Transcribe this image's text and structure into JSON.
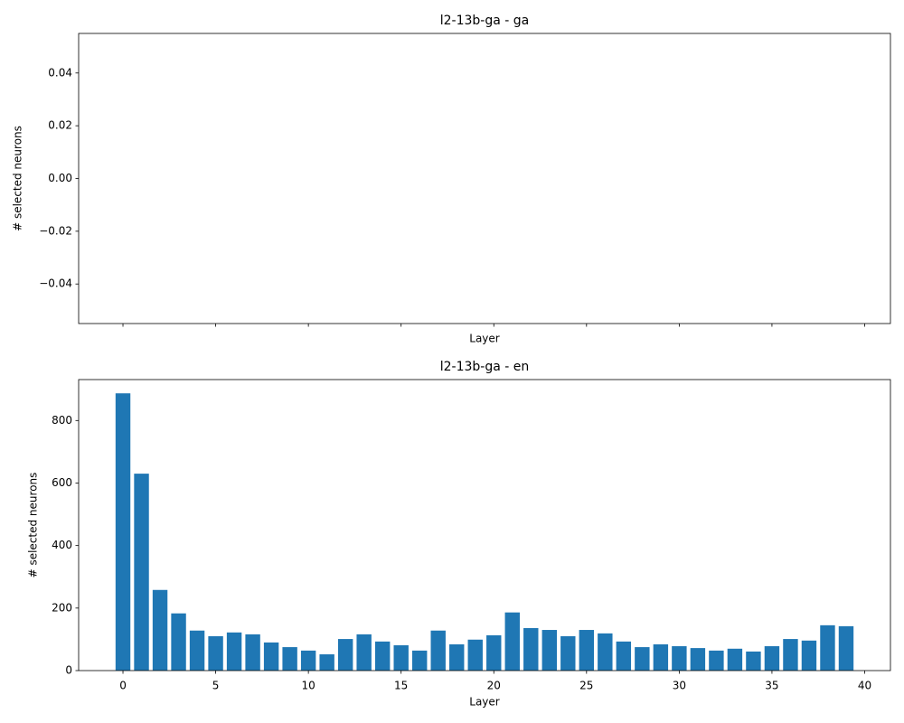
{
  "chart_data": [
    {
      "type": "bar",
      "title": "l2-13b-ga - ga",
      "xlabel": "Layer",
      "ylabel": "# selected neurons",
      "x": [],
      "values": [],
      "color": "#1f77b4",
      "xlim": [
        -2.39,
        41.39
      ],
      "xticks": [
        0,
        5,
        10,
        15,
        20,
        25,
        30,
        35,
        40
      ],
      "show_xtick_labels": false,
      "ylim": [
        -0.055,
        0.055
      ],
      "yticks": [
        {
          "value": -0.04,
          "label": "−0.04"
        },
        {
          "value": -0.02,
          "label": "−0.02"
        },
        {
          "value": 0,
          "label": "0.00"
        },
        0.02,
        0.04
      ]
    },
    {
      "type": "bar",
      "title": "l2-13b-ga - en",
      "xlabel": "Layer",
      "ylabel": "# selected neurons",
      "x": [
        0,
        1,
        2,
        3,
        4,
        5,
        6,
        7,
        8,
        9,
        10,
        11,
        12,
        13,
        14,
        15,
        16,
        17,
        18,
        19,
        20,
        21,
        22,
        23,
        24,
        25,
        26,
        27,
        28,
        29,
        30,
        31,
        32,
        33,
        34,
        35,
        36,
        37,
        38,
        39
      ],
      "values": [
        887,
        630,
        258,
        183,
        128,
        110,
        122,
        116,
        90,
        75,
        64,
        52,
        101,
        116,
        93,
        81,
        64,
        128,
        84,
        99,
        113,
        186,
        136,
        130,
        110,
        130,
        119,
        93,
        75,
        84,
        78,
        72,
        64,
        70,
        61,
        78,
        101,
        96,
        145,
        142
      ],
      "color": "#1f77b4",
      "xlim": [
        -2.39,
        41.39
      ],
      "xticks": [
        0,
        5,
        10,
        15,
        20,
        25,
        30,
        35,
        40
      ],
      "show_xtick_labels": true,
      "ylim": [
        0,
        931
      ],
      "yticks": [
        0,
        200,
        400,
        600,
        800
      ]
    }
  ]
}
